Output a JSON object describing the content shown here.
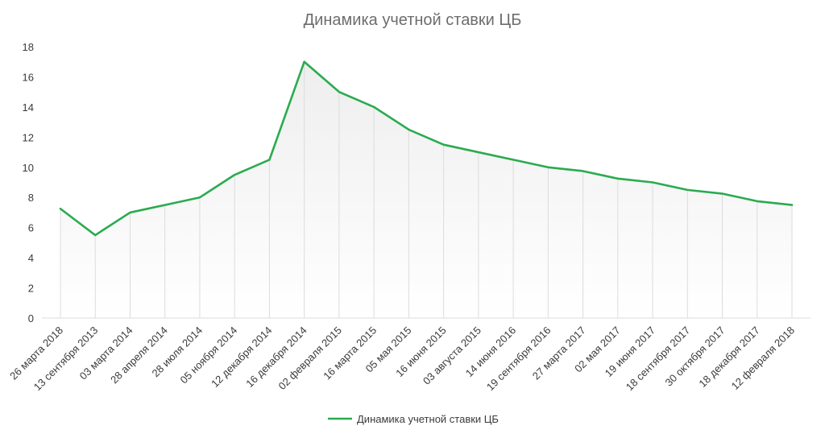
{
  "chart_data": {
    "type": "line",
    "title": "Динамика учетной ставки ЦБ",
    "xlabel": "",
    "ylabel": "",
    "categories": [
      "26 марта 2018",
      "13 сентября 2013",
      "03 марта 2014",
      "28 апреля 2014",
      "28 июля 2014",
      "05 ноября 2014",
      "12 декабря 2014",
      "16 декабря 2014",
      "02 февраля 2015",
      "16 марта 2015",
      "05 мая 2015",
      "16 июня 2015",
      "03 августа 2015",
      "14 июня 2016",
      "19 сентября 2016",
      "27 марта 2017",
      "02 мая 2017",
      "19 июня 2017",
      "18 сентября 2017",
      "30 октября 2017",
      "18 декабря 2017",
      "12 февраля 2018"
    ],
    "series": [
      {
        "name": "Динамика учетной ставки ЦБ",
        "values": [
          7.25,
          5.5,
          7,
          7.5,
          8,
          9.5,
          10.5,
          17,
          15,
          14,
          12.5,
          11.5,
          11,
          10.5,
          10,
          9.75,
          9.25,
          9,
          8.5,
          8.25,
          7.75,
          7.5
        ]
      }
    ],
    "ylim": [
      0,
      18
    ],
    "yticks": [
      0,
      2,
      4,
      6,
      8,
      10,
      12,
      14,
      16,
      18
    ],
    "grid": "vertical",
    "legend_position": "bottom",
    "colors": {
      "line": "#2aab4f",
      "grid": "#dcdcdc",
      "fill_top": "#eeeeee",
      "fill_bottom": "#ffffff"
    }
  }
}
